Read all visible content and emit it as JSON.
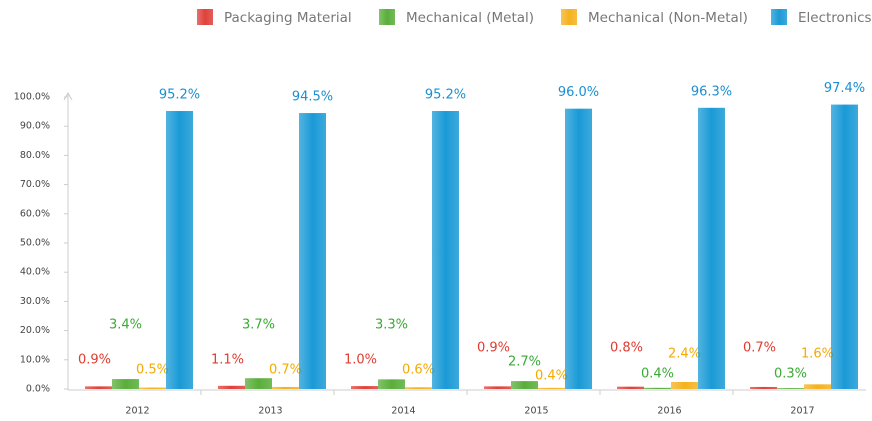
{
  "chart_data": {
    "type": "bar",
    "categories": [
      "2012",
      "2013",
      "2014",
      "2015",
      "2016",
      "2017"
    ],
    "series": [
      {
        "name": "Packaging Material",
        "color": "#e0413a",
        "values": [
          0.9,
          1.1,
          1.0,
          0.9,
          0.8,
          0.7
        ],
        "value_labels": [
          "0.9%",
          "1.1%",
          "1.0%",
          "0.9%",
          "0.8%",
          "0.7%"
        ]
      },
      {
        "name": "Mechanical (Metal)",
        "color": "#5aae3a",
        "values": [
          3.4,
          3.7,
          3.3,
          2.7,
          0.4,
          0.3
        ],
        "value_labels": [
          "3.4%",
          "3.7%",
          "3.3%",
          "2.7%",
          "0.4%",
          "0.3%"
        ]
      },
      {
        "name": "Mechanical (Non-Metal)",
        "color": "#f5b21e",
        "values": [
          0.5,
          0.7,
          0.6,
          0.4,
          2.4,
          1.6
        ],
        "value_labels": [
          "0.5%",
          "0.7%",
          "0.6%",
          "0.4%",
          "2.4%",
          "1.6%"
        ]
      },
      {
        "name": "Electronics",
        "color": "#1a9ad6",
        "values": [
          95.2,
          94.5,
          95.2,
          96.0,
          96.3,
          97.4
        ],
        "value_labels": [
          "95.2%",
          "94.5%",
          "95.2%",
          "96.0%",
          "96.3%",
          "97.4%"
        ]
      }
    ],
    "ylim": [
      0,
      100
    ],
    "yticks": [
      {
        "value": 0,
        "label": "0.0%"
      },
      {
        "value": 10,
        "label": "10.0%"
      },
      {
        "value": 20,
        "label": "20.0%"
      },
      {
        "value": 30,
        "label": "30.0%"
      },
      {
        "value": 40,
        "label": "40.0%"
      },
      {
        "value": 50,
        "label": "50.0%"
      },
      {
        "value": 60,
        "label": "60.0%"
      },
      {
        "value": 70,
        "label": "70.0%"
      },
      {
        "value": 80,
        "label": "80.0%"
      },
      {
        "value": 90,
        "label": "90.0%"
      },
      {
        "value": 100,
        "label": "100.0%"
      }
    ],
    "legend": "top-right"
  }
}
